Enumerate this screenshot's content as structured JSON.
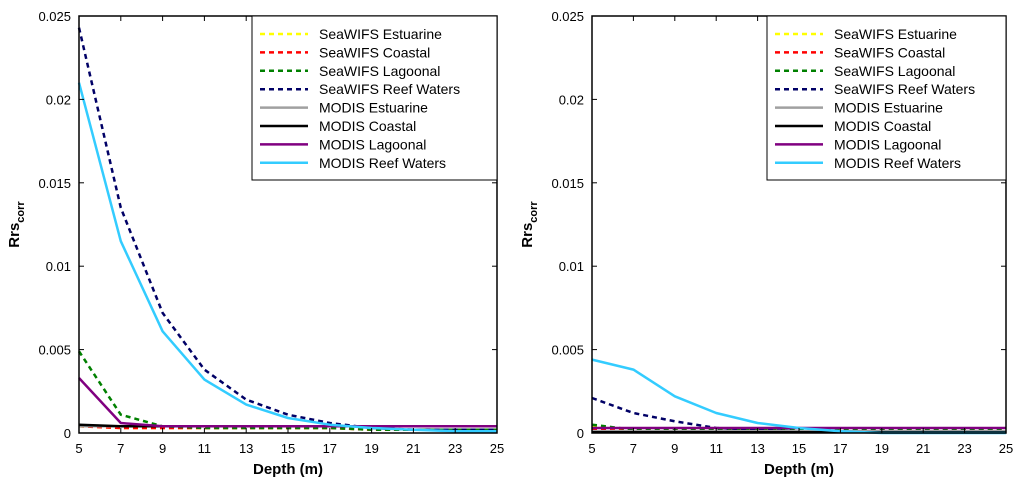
{
  "chart_data": [
    {
      "type": "line",
      "id": "left",
      "xlabel": "Depth (m)",
      "ylabel": "Rrs",
      "ylabel_sub": "corr",
      "xlim": [
        5,
        25
      ],
      "ylim": [
        0,
        0.025
      ],
      "xticks": [
        "5",
        "7",
        "9",
        "11",
        "13",
        "15",
        "17",
        "19",
        "21",
        "23",
        "25"
      ],
      "yticks": [
        "0",
        "0.005",
        "0.01",
        "0.015",
        "0.02",
        "0.025"
      ],
      "x": [
        5,
        7,
        9,
        11,
        13,
        15,
        17,
        19,
        21,
        23,
        25
      ],
      "series": [
        {
          "name": "SeaWIFS Estuarine",
          "color": "#FFFF00",
          "dash": true,
          "values": [
            0.0004,
            0.0003,
            0.0003,
            0.0003,
            0.0003,
            0.0003,
            0.0003,
            0.0002,
            0.0002,
            0.0002,
            0.0002
          ]
        },
        {
          "name": "SeaWIFS Coastal",
          "color": "#FF0000",
          "dash": true,
          "values": [
            0.0004,
            0.0003,
            0.0003,
            0.0003,
            0.0003,
            0.0003,
            0.0003,
            0.0002,
            0.0002,
            0.0002,
            0.0002
          ]
        },
        {
          "name": "SeaWIFS Lagoonal",
          "color": "#008000",
          "dash": true,
          "values": [
            0.0049,
            0.0011,
            0.0004,
            0.0003,
            0.0003,
            0.0003,
            0.0003,
            0.0002,
            0.0002,
            0.0002,
            0.0002
          ]
        },
        {
          "name": "SeaWIFS Reef Waters",
          "color": "#000066",
          "dash": true,
          "values": [
            0.0243,
            0.0135,
            0.0072,
            0.0038,
            0.002,
            0.0011,
            0.0006,
            0.0003,
            0.0002,
            0.0002,
            0.0002
          ]
        },
        {
          "name": "MODIS Estuarine",
          "color": "#A0A0A0",
          "dash": false,
          "values": [
            0.0004,
            0.0004,
            0.0004,
            0.0004,
            0.0004,
            0.0004,
            0.0004,
            0.0004,
            0.0004,
            0.0004,
            0.0004
          ]
        },
        {
          "name": "MODIS Coastal",
          "color": "#000000",
          "dash": false,
          "values": [
            0.0005,
            0.0004,
            0.0004,
            0.0004,
            0.0004,
            0.0004,
            0.0004,
            0.0004,
            0.0004,
            0.0004,
            0.0004
          ]
        },
        {
          "name": "MODIS Lagoonal",
          "color": "#800080",
          "dash": false,
          "values": [
            0.0033,
            0.0006,
            0.0004,
            0.0004,
            0.0004,
            0.0004,
            0.0004,
            0.0004,
            0.0004,
            0.0004,
            0.0004
          ]
        },
        {
          "name": "MODIS Reef Waters",
          "color": "#33CCFF",
          "dash": false,
          "values": [
            0.021,
            0.0115,
            0.0061,
            0.0032,
            0.0017,
            0.0009,
            0.0005,
            0.0003,
            0.0002,
            0.0001,
            0.0001
          ]
        }
      ]
    },
    {
      "type": "line",
      "id": "right",
      "xlabel": "Depth (m)",
      "ylabel": "Rrs",
      "ylabel_sub": "corr",
      "xlim": [
        5,
        25
      ],
      "ylim": [
        0,
        0.025
      ],
      "xticks": [
        "5",
        "7",
        "9",
        "11",
        "13",
        "15",
        "17",
        "19",
        "21",
        "23",
        "25"
      ],
      "yticks": [
        "0",
        "0.005",
        "0.01",
        "0.015",
        "0.02",
        "0.025"
      ],
      "x": [
        5,
        7,
        9,
        11,
        13,
        15,
        17,
        19,
        21,
        23,
        25
      ],
      "series": [
        {
          "name": "SeaWIFS Estuarine",
          "color": "#FFFF00",
          "dash": true,
          "values": [
            0.0004,
            0.0002,
            0.0002,
            0.0002,
            0.0002,
            0.0002,
            0.0002,
            0.0002,
            0.0002,
            0.0002,
            0.0002
          ]
        },
        {
          "name": "SeaWIFS Coastal",
          "color": "#FF0000",
          "dash": true,
          "values": [
            0.0002,
            0.0001,
            0.0001,
            0.0001,
            0.0001,
            0.0001,
            0.0001,
            0.0001,
            0.0001,
            0.0001,
            0.0001
          ]
        },
        {
          "name": "SeaWIFS Lagoonal",
          "color": "#008000",
          "dash": true,
          "values": [
            0.0005,
            0.0002,
            0.0002,
            0.0002,
            0.0002,
            0.0002,
            0.0002,
            0.0002,
            0.0002,
            0.0002,
            0.0002
          ]
        },
        {
          "name": "SeaWIFS Reef Waters",
          "color": "#000066",
          "dash": true,
          "values": [
            0.0021,
            0.0012,
            0.0007,
            0.0003,
            0.0002,
            0.0001,
            0.0001,
            0.0001,
            0.0001,
            0.0001,
            0.0001
          ]
        },
        {
          "name": "MODIS Estuarine",
          "color": "#A0A0A0",
          "dash": false,
          "values": [
            0.0001,
            0.0001,
            0.0001,
            0.0001,
            0.0001,
            0.0001,
            0.0001,
            0.0001,
            0.0001,
            0.0001,
            0.0001
          ]
        },
        {
          "name": "MODIS Coastal",
          "color": "#000000",
          "dash": false,
          "values": [
            5e-05,
            5e-05,
            5e-05,
            5e-05,
            5e-05,
            5e-05,
            5e-05,
            5e-05,
            5e-05,
            5e-05,
            5e-05
          ]
        },
        {
          "name": "MODIS Lagoonal",
          "color": "#800080",
          "dash": false,
          "values": [
            0.0003,
            0.0003,
            0.0003,
            0.0003,
            0.0003,
            0.0003,
            0.0003,
            0.0003,
            0.0003,
            0.0003,
            0.0003
          ]
        },
        {
          "name": "MODIS Reef Waters",
          "color": "#33CCFF",
          "dash": false,
          "values": [
            0.0044,
            0.0038,
            0.0022,
            0.0012,
            0.0006,
            0.0003,
            0.0001,
            0.0,
            0.0,
            0.0,
            0.0
          ]
        }
      ]
    }
  ]
}
